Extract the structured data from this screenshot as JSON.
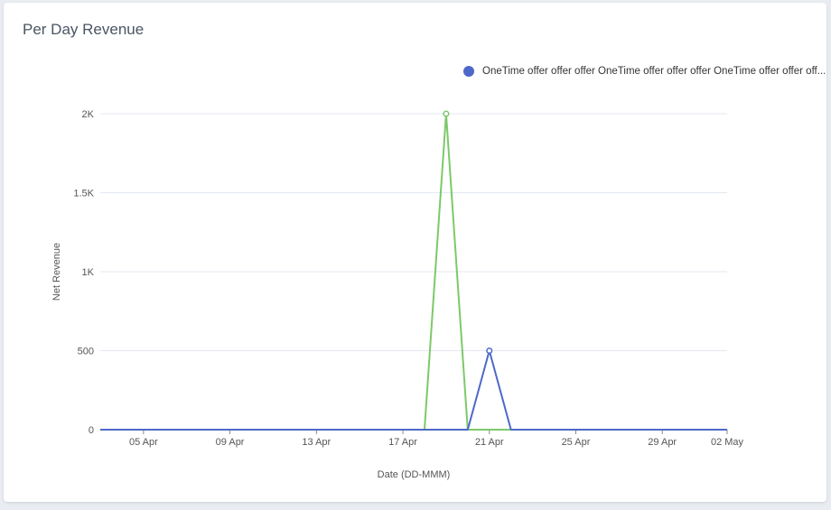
{
  "title": "Per Day Revenue",
  "chart_data": {
    "type": "line",
    "xlabel": "Date (DD-MMM)",
    "ylabel": "Net Revenue",
    "x": [
      "03 Apr",
      "04 Apr",
      "05 Apr",
      "06 Apr",
      "07 Apr",
      "08 Apr",
      "09 Apr",
      "10 Apr",
      "11 Apr",
      "12 Apr",
      "13 Apr",
      "14 Apr",
      "15 Apr",
      "16 Apr",
      "17 Apr",
      "18 Apr",
      "19 Apr",
      "20 Apr",
      "21 Apr",
      "22 Apr",
      "23 Apr",
      "24 Apr",
      "25 Apr",
      "26 Apr",
      "27 Apr",
      "28 Apr",
      "29 Apr",
      "30 Apr",
      "01 May",
      "02 May"
    ],
    "x_ticks": [
      "05 Apr",
      "09 Apr",
      "13 Apr",
      "17 Apr",
      "21 Apr",
      "25 Apr",
      "29 Apr",
      "02 May"
    ],
    "ylim": [
      0,
      2000
    ],
    "y_ticks": [
      {
        "value": 0,
        "label": "0"
      },
      {
        "value": 500,
        "label": "500"
      },
      {
        "value": 1000,
        "label": "1K"
      },
      {
        "value": 1500,
        "label": "1.5K"
      },
      {
        "value": 2000,
        "label": "2K"
      }
    ],
    "grid": true,
    "legend_position": "top-right",
    "series": [
      {
        "color": "#7cc96a",
        "values": [
          0,
          0,
          0,
          0,
          0,
          0,
          0,
          0,
          0,
          0,
          0,
          0,
          0,
          0,
          0,
          0,
          2000,
          0,
          0,
          0,
          0,
          0,
          0,
          0,
          0,
          0,
          0,
          0,
          0,
          0
        ]
      },
      {
        "name": "OneTime offer offer offer OneTime offer offer offer OneTime offer offer off...",
        "color": "#4e68c8",
        "values": [
          0,
          0,
          0,
          0,
          0,
          0,
          0,
          0,
          0,
          0,
          0,
          0,
          0,
          0,
          0,
          0,
          0,
          0,
          500,
          0,
          0,
          0,
          0,
          0,
          0,
          0,
          0,
          0,
          0,
          0
        ]
      }
    ]
  }
}
